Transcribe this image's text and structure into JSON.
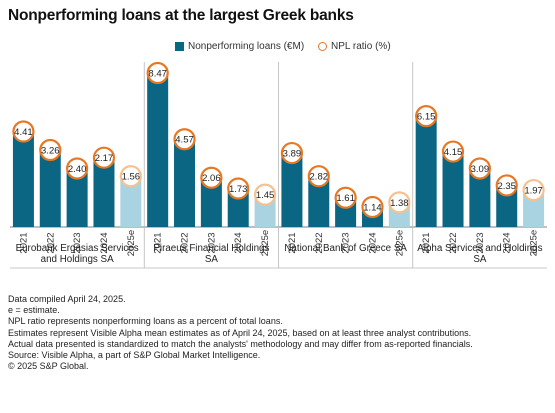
{
  "title": "Nonperforming loans at the largest Greek banks",
  "legend": {
    "bars_label": "Nonperforming loans (€M)",
    "ratio_label": "NPL ratio (%)"
  },
  "colors": {
    "bar_actual": "#0b6683",
    "bar_estimate": "#a9d3e0",
    "ratio_actual": "#e87722",
    "ratio_estimate": "#f6c08f",
    "divider": "#b8b8b8",
    "axis": "#555555"
  },
  "chart_data": {
    "type": "bar",
    "title": "Nonperforming loans at the largest Greek banks",
    "xlabel": "",
    "ylabel": "",
    "grid": false,
    "legend_position": "top",
    "groups": [
      {
        "name": "Eurobank Ergasias Services and Holdings SA",
        "label_lines": [
          "Eurobank Ergasias Services",
          "and Holdings SA"
        ],
        "categories": [
          "2021",
          "2022",
          "2023",
          "2024",
          "2025e"
        ],
        "npl_ratio": [
          4.41,
          3.26,
          2.4,
          2.17,
          1.56
        ],
        "npl_bar_relative": [
          0.62,
          0.5,
          0.38,
          0.45,
          0.33
        ]
      },
      {
        "name": "Piraeus Financial Holdings SA",
        "label_lines": [
          "Piraeus Financial Holdings",
          "SA"
        ],
        "categories": [
          "2021",
          "2022",
          "2023",
          "2024",
          "2025e"
        ],
        "npl_ratio": [
          8.47,
          4.57,
          2.06,
          1.73,
          1.45
        ],
        "npl_bar_relative": [
          1.0,
          0.57,
          0.32,
          0.25,
          0.21
        ]
      },
      {
        "name": "National Bank of Greece SA",
        "label_lines": [
          "National Bank of Greece SA"
        ],
        "categories": [
          "2021",
          "2022",
          "2023",
          "2024",
          "2025e"
        ],
        "npl_ratio": [
          3.89,
          2.82,
          1.61,
          1.14,
          1.38
        ],
        "npl_bar_relative": [
          0.48,
          0.33,
          0.19,
          0.13,
          0.16
        ]
      },
      {
        "name": "Alpha Services and Holdings SA",
        "label_lines": [
          "Alpha Services and Holdings",
          "SA"
        ],
        "categories": [
          "2021",
          "2022",
          "2023",
          "2024",
          "2025e"
        ],
        "npl_ratio": [
          6.15,
          4.15,
          3.09,
          2.35,
          1.97
        ],
        "npl_bar_relative": [
          0.72,
          0.49,
          0.38,
          0.27,
          0.24
        ]
      }
    ],
    "estimate_category": "2025e",
    "series": [
      {
        "name": "Nonperforming loans (€M)",
        "kind": "bar"
      },
      {
        "name": "NPL ratio (%)",
        "kind": "marker"
      }
    ]
  },
  "notes": [
    "Data compiled April 24, 2025.",
    "e = estimate.",
    "NPL ratio represents nonperforming loans as a percent of total loans.",
    "Estimates represent Visible Alpha mean estimates as of April 24, 2025, based on at least three analyst contributions.",
    "Actual data presented is standardized to match the analysts' methodology and may differ from as-reported financials.",
    "Source: Visible Alpha, a part of S&P Global Market Intelligence.",
    "© 2025 S&P Global."
  ]
}
